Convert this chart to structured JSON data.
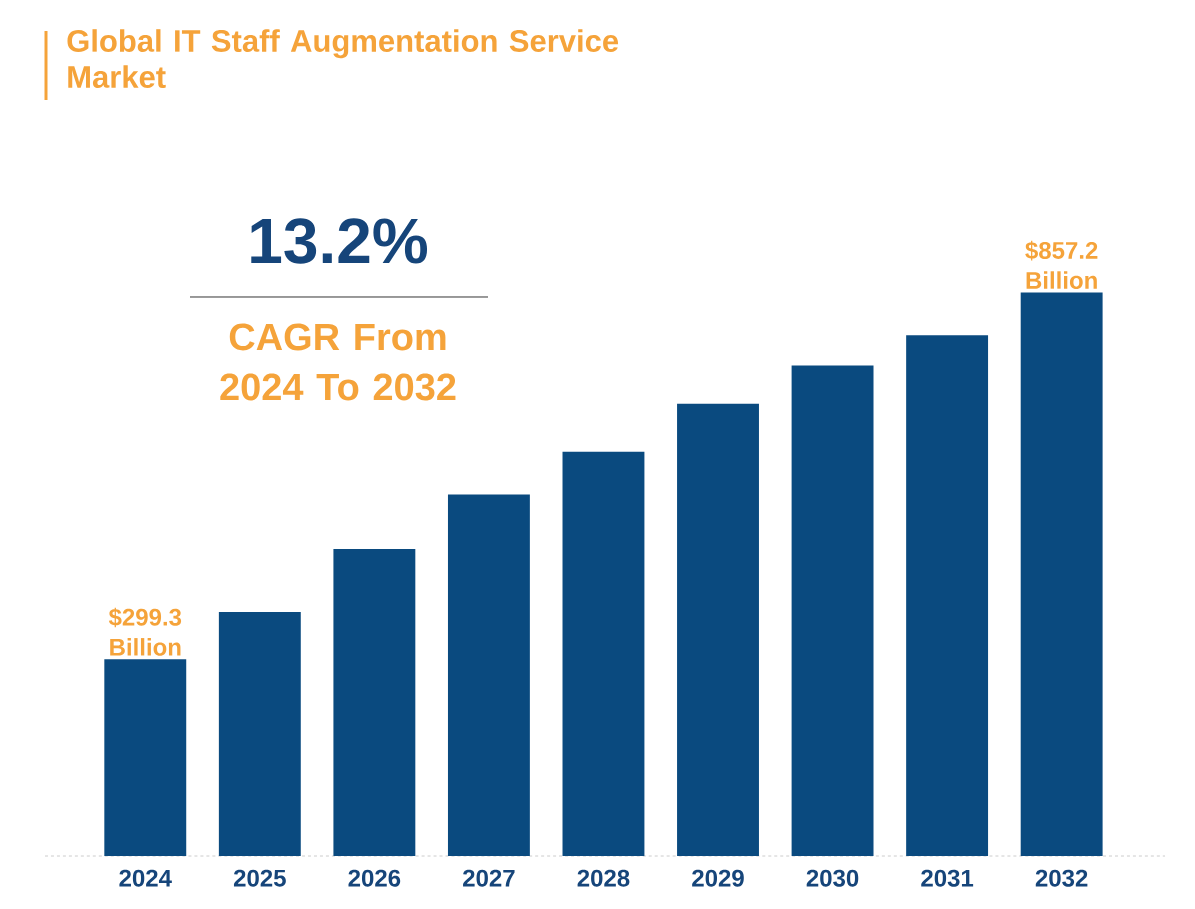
{
  "chart_data": {
    "type": "bar",
    "title": "Global IT Staff Augmentation Service Market",
    "annotations": [
      "13.2%",
      "CAGR From 2024 To 2032"
    ],
    "categories": [
      "2024",
      "2025",
      "2026",
      "2027",
      "2028",
      "2029",
      "2030",
      "2031",
      "2032"
    ],
    "values": [
      299.3,
      371,
      467,
      550,
      615,
      688,
      746,
      792,
      857.2
    ],
    "value_labels": [
      "$299.3 Billion",
      null,
      null,
      null,
      null,
      null,
      null,
      null,
      "$857.2 Billion"
    ],
    "color": "#0a4a7f"
  }
}
